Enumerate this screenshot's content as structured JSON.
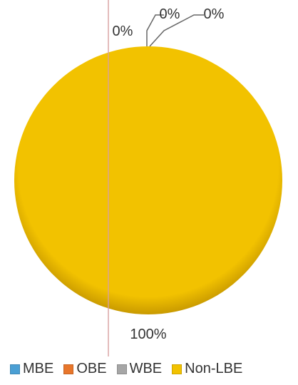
{
  "chart_data": {
    "type": "pie",
    "categories": [
      "MBE",
      "OBE",
      "WBE",
      "Non-LBE"
    ],
    "values": [
      0,
      0,
      0,
      100
    ],
    "data_labels": [
      "0%",
      "0%",
      "0%",
      "100%"
    ],
    "colors": [
      "#4a9fd4",
      "#e8762b",
      "#a6a6a6",
      "#f2c200"
    ],
    "legend_position": "bottom"
  }
}
